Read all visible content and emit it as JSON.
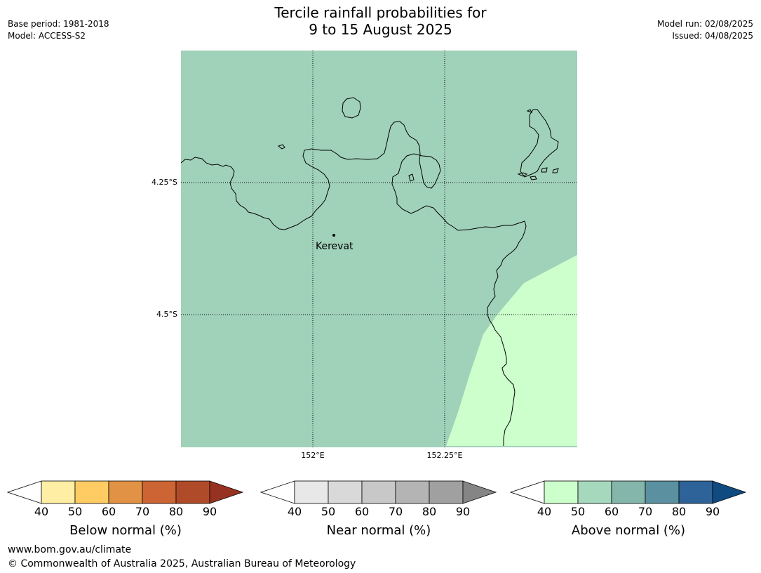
{
  "title": {
    "line1": "Tercile rainfall probabilities for",
    "line2": "9 to 15 August 2025"
  },
  "meta_left": {
    "base_period": "Base period: 1981-2018",
    "model": "Model: ACCESS-S2"
  },
  "meta_right": {
    "model_run": "Model run: 02/08/2025",
    "issued": "Issued: 04/08/2025"
  },
  "map": {
    "lat_labels": [
      "4.25°S",
      "4.5°S"
    ],
    "lon_labels": [
      "152°E",
      "152.25°E"
    ],
    "place": {
      "name": "Kerevat"
    },
    "colors": {
      "above_50_60": "#a0d1b9",
      "above_40_50": "#ccffcc",
      "grid": "#000000",
      "coast": "#000000"
    }
  },
  "colorbars": [
    {
      "title": "Below normal (%)",
      "ticks": [
        "40",
        "50",
        "60",
        "70",
        "80",
        "90"
      ],
      "colors": [
        "#ffeea3",
        "#fecc63",
        "#e19244",
        "#cc6433",
        "#b04b29"
      ],
      "under_color": "#ffffff",
      "over_color": "#973220"
    },
    {
      "title": "Near normal (%)",
      "ticks": [
        "40",
        "50",
        "60",
        "70",
        "80",
        "90"
      ],
      "colors": [
        "#e8e8e8",
        "#d9d9d9",
        "#c8c8c8",
        "#b4b4b4",
        "#a0a0a0"
      ],
      "under_color": "#ffffff",
      "over_color": "#858585"
    },
    {
      "title": "Above normal (%)",
      "ticks": [
        "40",
        "50",
        "60",
        "70",
        "80",
        "90"
      ],
      "colors": [
        "#ccffcc",
        "#a6d8bd",
        "#84b6ab",
        "#5a90a0",
        "#2e6399"
      ],
      "under_color": "#ffffff",
      "over_color": "#0f4a80"
    }
  ],
  "footer": {
    "url": "www.bom.gov.au/climate",
    "copyright": "© Commonwealth of Australia 2025, Australian Bureau of Meteorology"
  }
}
